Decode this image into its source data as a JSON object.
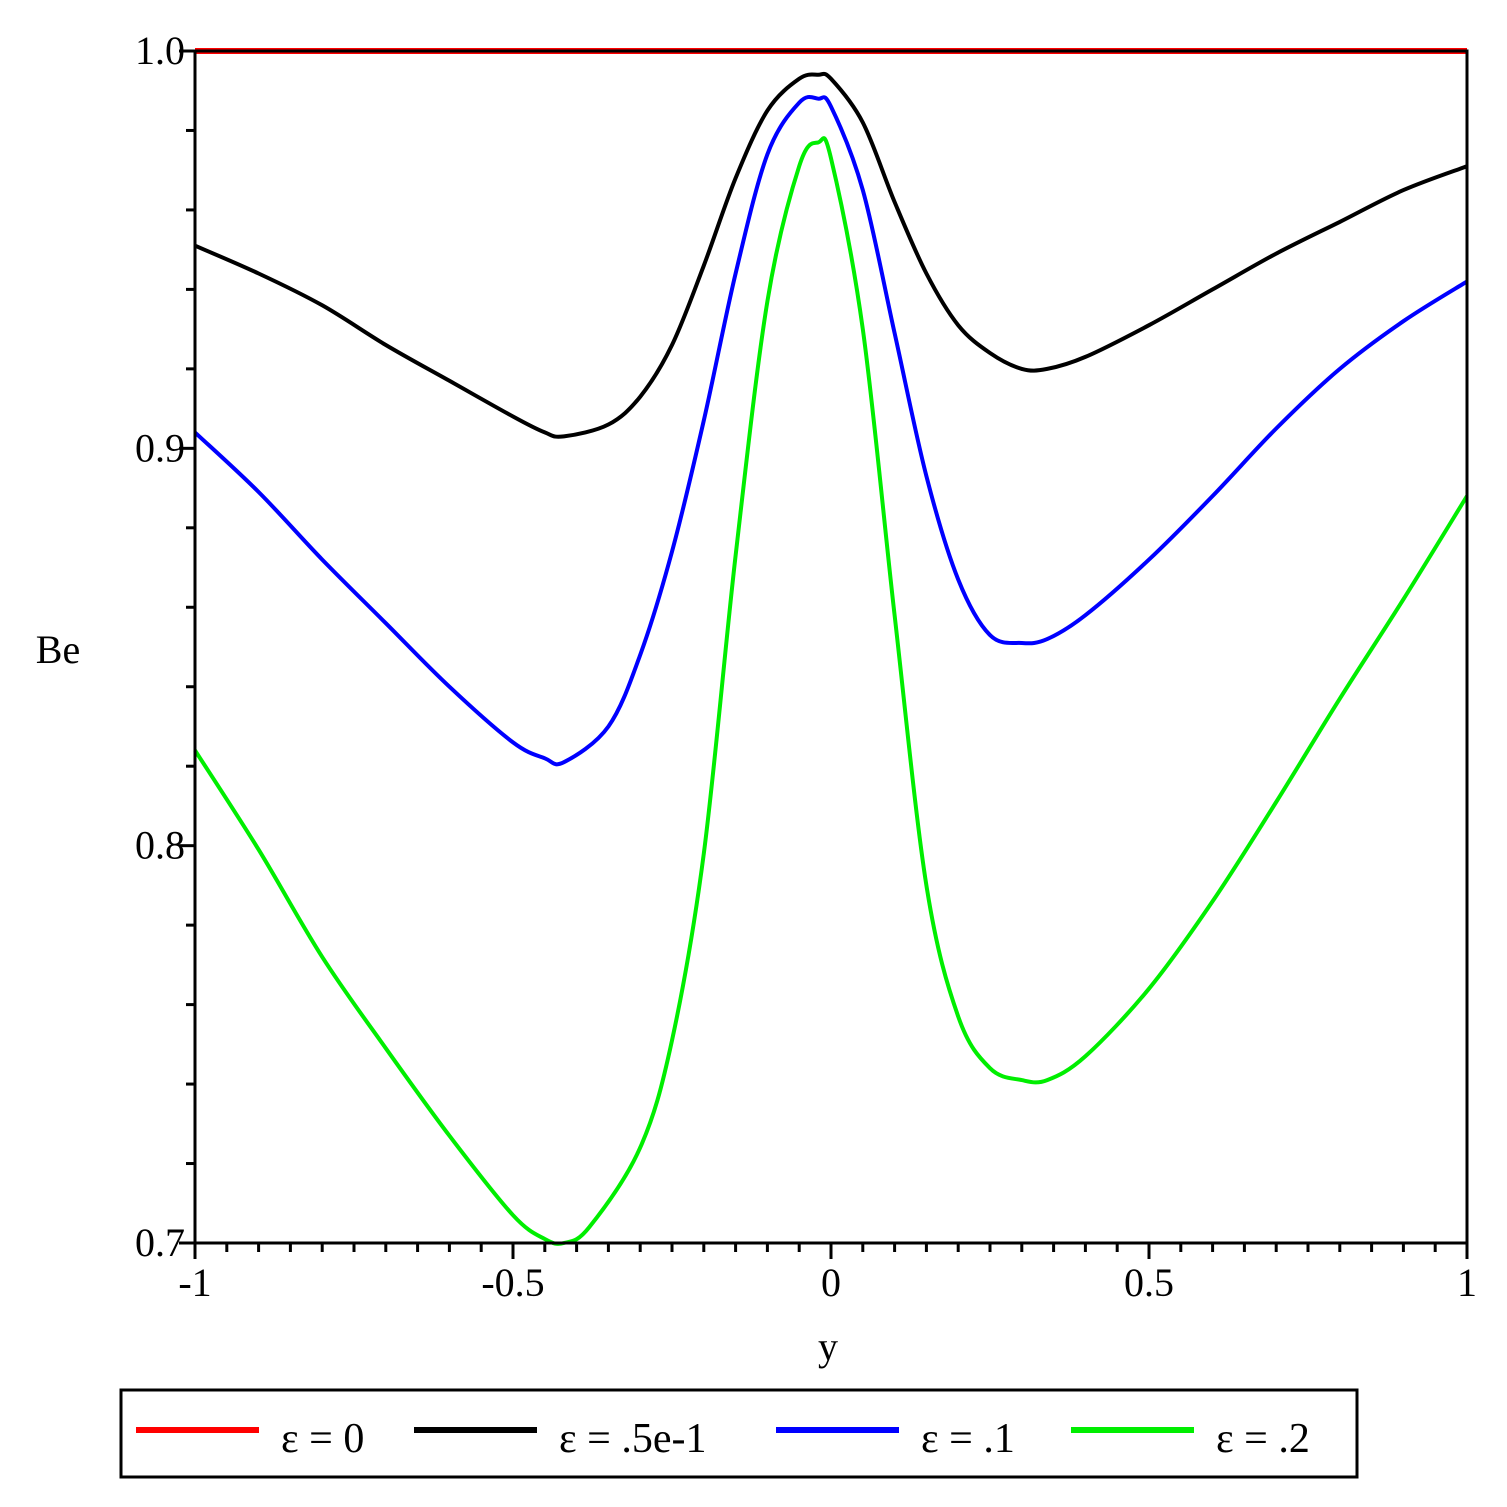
{
  "chart_data": {
    "type": "line",
    "xlabel": "y",
    "ylabel": "Be",
    "xlim": [
      -1,
      1
    ],
    "ylim": [
      0.7,
      1.0
    ],
    "x_ticks": [
      {
        "value": -1,
        "label": "-1"
      },
      {
        "value": -0.5,
        "label": "-0.5"
      },
      {
        "value": 0,
        "label": "0"
      },
      {
        "value": 0.5,
        "label": "0.5"
      },
      {
        "value": 1,
        "label": "1"
      }
    ],
    "y_ticks": [
      {
        "value": 0.7,
        "label": "0.7"
      },
      {
        "value": 0.8,
        "label": "0.8"
      },
      {
        "value": 0.9,
        "label": "0.9"
      },
      {
        "value": 1.0,
        "label": "1.0"
      }
    ],
    "grid": false,
    "legend_position": "bottom",
    "series": [
      {
        "name": "ε = 0",
        "color": "#ff0000",
        "x": [
          -1,
          -0.8,
          -0.6,
          -0.4,
          -0.2,
          0,
          0.2,
          0.4,
          0.6,
          0.8,
          1
        ],
        "y": [
          1.0,
          1.0,
          1.0,
          1.0,
          1.0,
          1.0,
          1.0,
          1.0,
          1.0,
          1.0,
          1.0
        ]
      },
      {
        "name": "ε = .5e-1",
        "color": "#000000",
        "x": [
          -1,
          -0.9,
          -0.8,
          -0.7,
          -0.6,
          -0.5,
          -0.45,
          -0.42,
          -0.35,
          -0.3,
          -0.25,
          -0.2,
          -0.15,
          -0.1,
          -0.05,
          -0.02,
          0,
          0.05,
          0.1,
          0.15,
          0.2,
          0.25,
          0.3,
          0.34,
          0.4,
          0.5,
          0.6,
          0.7,
          0.8,
          0.9,
          1
        ],
        "y": [
          0.951,
          0.944,
          0.936,
          0.926,
          0.917,
          0.908,
          0.904,
          0.903,
          0.906,
          0.913,
          0.926,
          0.946,
          0.968,
          0.985,
          0.993,
          0.994,
          0.993,
          0.982,
          0.962,
          0.944,
          0.931,
          0.924,
          0.92,
          0.92,
          0.923,
          0.931,
          0.94,
          0.949,
          0.957,
          0.965,
          0.971
        ]
      },
      {
        "name": "ε = .1",
        "color": "#0000ff",
        "x": [
          -1,
          -0.9,
          -0.8,
          -0.7,
          -0.6,
          -0.5,
          -0.45,
          -0.42,
          -0.35,
          -0.3,
          -0.25,
          -0.2,
          -0.15,
          -0.1,
          -0.05,
          -0.02,
          0,
          0.05,
          0.1,
          0.15,
          0.2,
          0.25,
          0.3,
          0.34,
          0.4,
          0.5,
          0.6,
          0.7,
          0.8,
          0.9,
          1
        ],
        "y": [
          0.904,
          0.889,
          0.872,
          0.856,
          0.84,
          0.826,
          0.822,
          0.821,
          0.83,
          0.848,
          0.874,
          0.907,
          0.944,
          0.974,
          0.987,
          0.988,
          0.986,
          0.965,
          0.929,
          0.893,
          0.867,
          0.853,
          0.851,
          0.852,
          0.858,
          0.872,
          0.888,
          0.905,
          0.92,
          0.932,
          0.942
        ]
      },
      {
        "name": "ε = .2",
        "color": "#00ee00",
        "x": [
          -1,
          -0.9,
          -0.8,
          -0.7,
          -0.6,
          -0.5,
          -0.45,
          -0.42,
          -0.38,
          -0.3,
          -0.25,
          -0.2,
          -0.15,
          -0.1,
          -0.05,
          -0.02,
          0,
          0.05,
          0.1,
          0.15,
          0.2,
          0.25,
          0.3,
          0.34,
          0.4,
          0.5,
          0.6,
          0.7,
          0.8,
          0.9,
          1
        ],
        "y": [
          0.824,
          0.799,
          0.772,
          0.749,
          0.727,
          0.707,
          0.701,
          0.7,
          0.704,
          0.724,
          0.751,
          0.798,
          0.873,
          0.937,
          0.971,
          0.977,
          0.973,
          0.93,
          0.858,
          0.79,
          0.757,
          0.744,
          0.741,
          0.741,
          0.747,
          0.764,
          0.786,
          0.811,
          0.837,
          0.862,
          0.888
        ]
      }
    ]
  }
}
